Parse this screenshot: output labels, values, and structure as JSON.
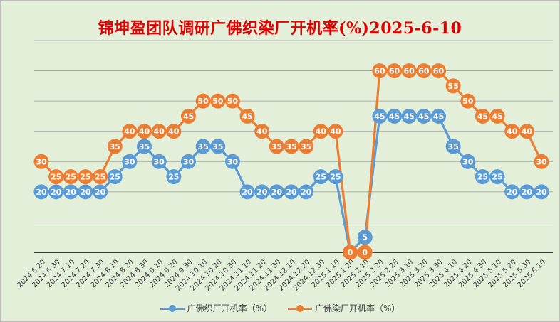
{
  "chart_data": {
    "type": "line",
    "title": "锦坤盈团队调研广佛织染厂开机率(%)2025-6-10",
    "categories": [
      "2024.6.20",
      "2024.6.30",
      "2024.7.10",
      "2024.7.20",
      "2024.7.30",
      "2024.8.10",
      "2024.8.20",
      "2024.8.30",
      "2024.9.10",
      "2024.9.20",
      "2024.9.30",
      "2024.10.10",
      "2024.10.20",
      "2024.10.30",
      "2024.11.10",
      "2024.11.20",
      "2024.11.30",
      "2024.12.10",
      "2024.12.20",
      "2024.12.30",
      "2025.1.10",
      "2025.1.20",
      "2025.2.10",
      "2025.2.20",
      "2025.2.28",
      "2025.3.10",
      "2025.3.20",
      "2025.3.30",
      "2025.4.10",
      "2025.4.20",
      "2025.4.30",
      "2025.5.10",
      "2025.5.20",
      "2025.5.30",
      "2025.6.10"
    ],
    "series": [
      {
        "name": "广佛织厂开机率（%）",
        "color": "#5b9bd5",
        "values": [
          20,
          20,
          20,
          20,
          20,
          25,
          30,
          35,
          30,
          25,
          30,
          35,
          35,
          30,
          20,
          20,
          20,
          20,
          20,
          25,
          25,
          0,
          5,
          45,
          45,
          45,
          45,
          45,
          35,
          30,
          25,
          25,
          20,
          20,
          20
        ]
      },
      {
        "name": "广佛染厂开机率（%）",
        "color": "#ed7d31",
        "values": [
          30,
          25,
          25,
          25,
          25,
          35,
          40,
          40,
          40,
          40,
          45,
          50,
          50,
          50,
          45,
          40,
          35,
          35,
          35,
          40,
          40,
          0,
          0,
          60,
          60,
          60,
          60,
          60,
          55,
          50,
          45,
          45,
          40,
          40,
          30
        ]
      }
    ],
    "ylim": [
      0,
      70
    ],
    "grid": true,
    "legend": "bottom"
  }
}
